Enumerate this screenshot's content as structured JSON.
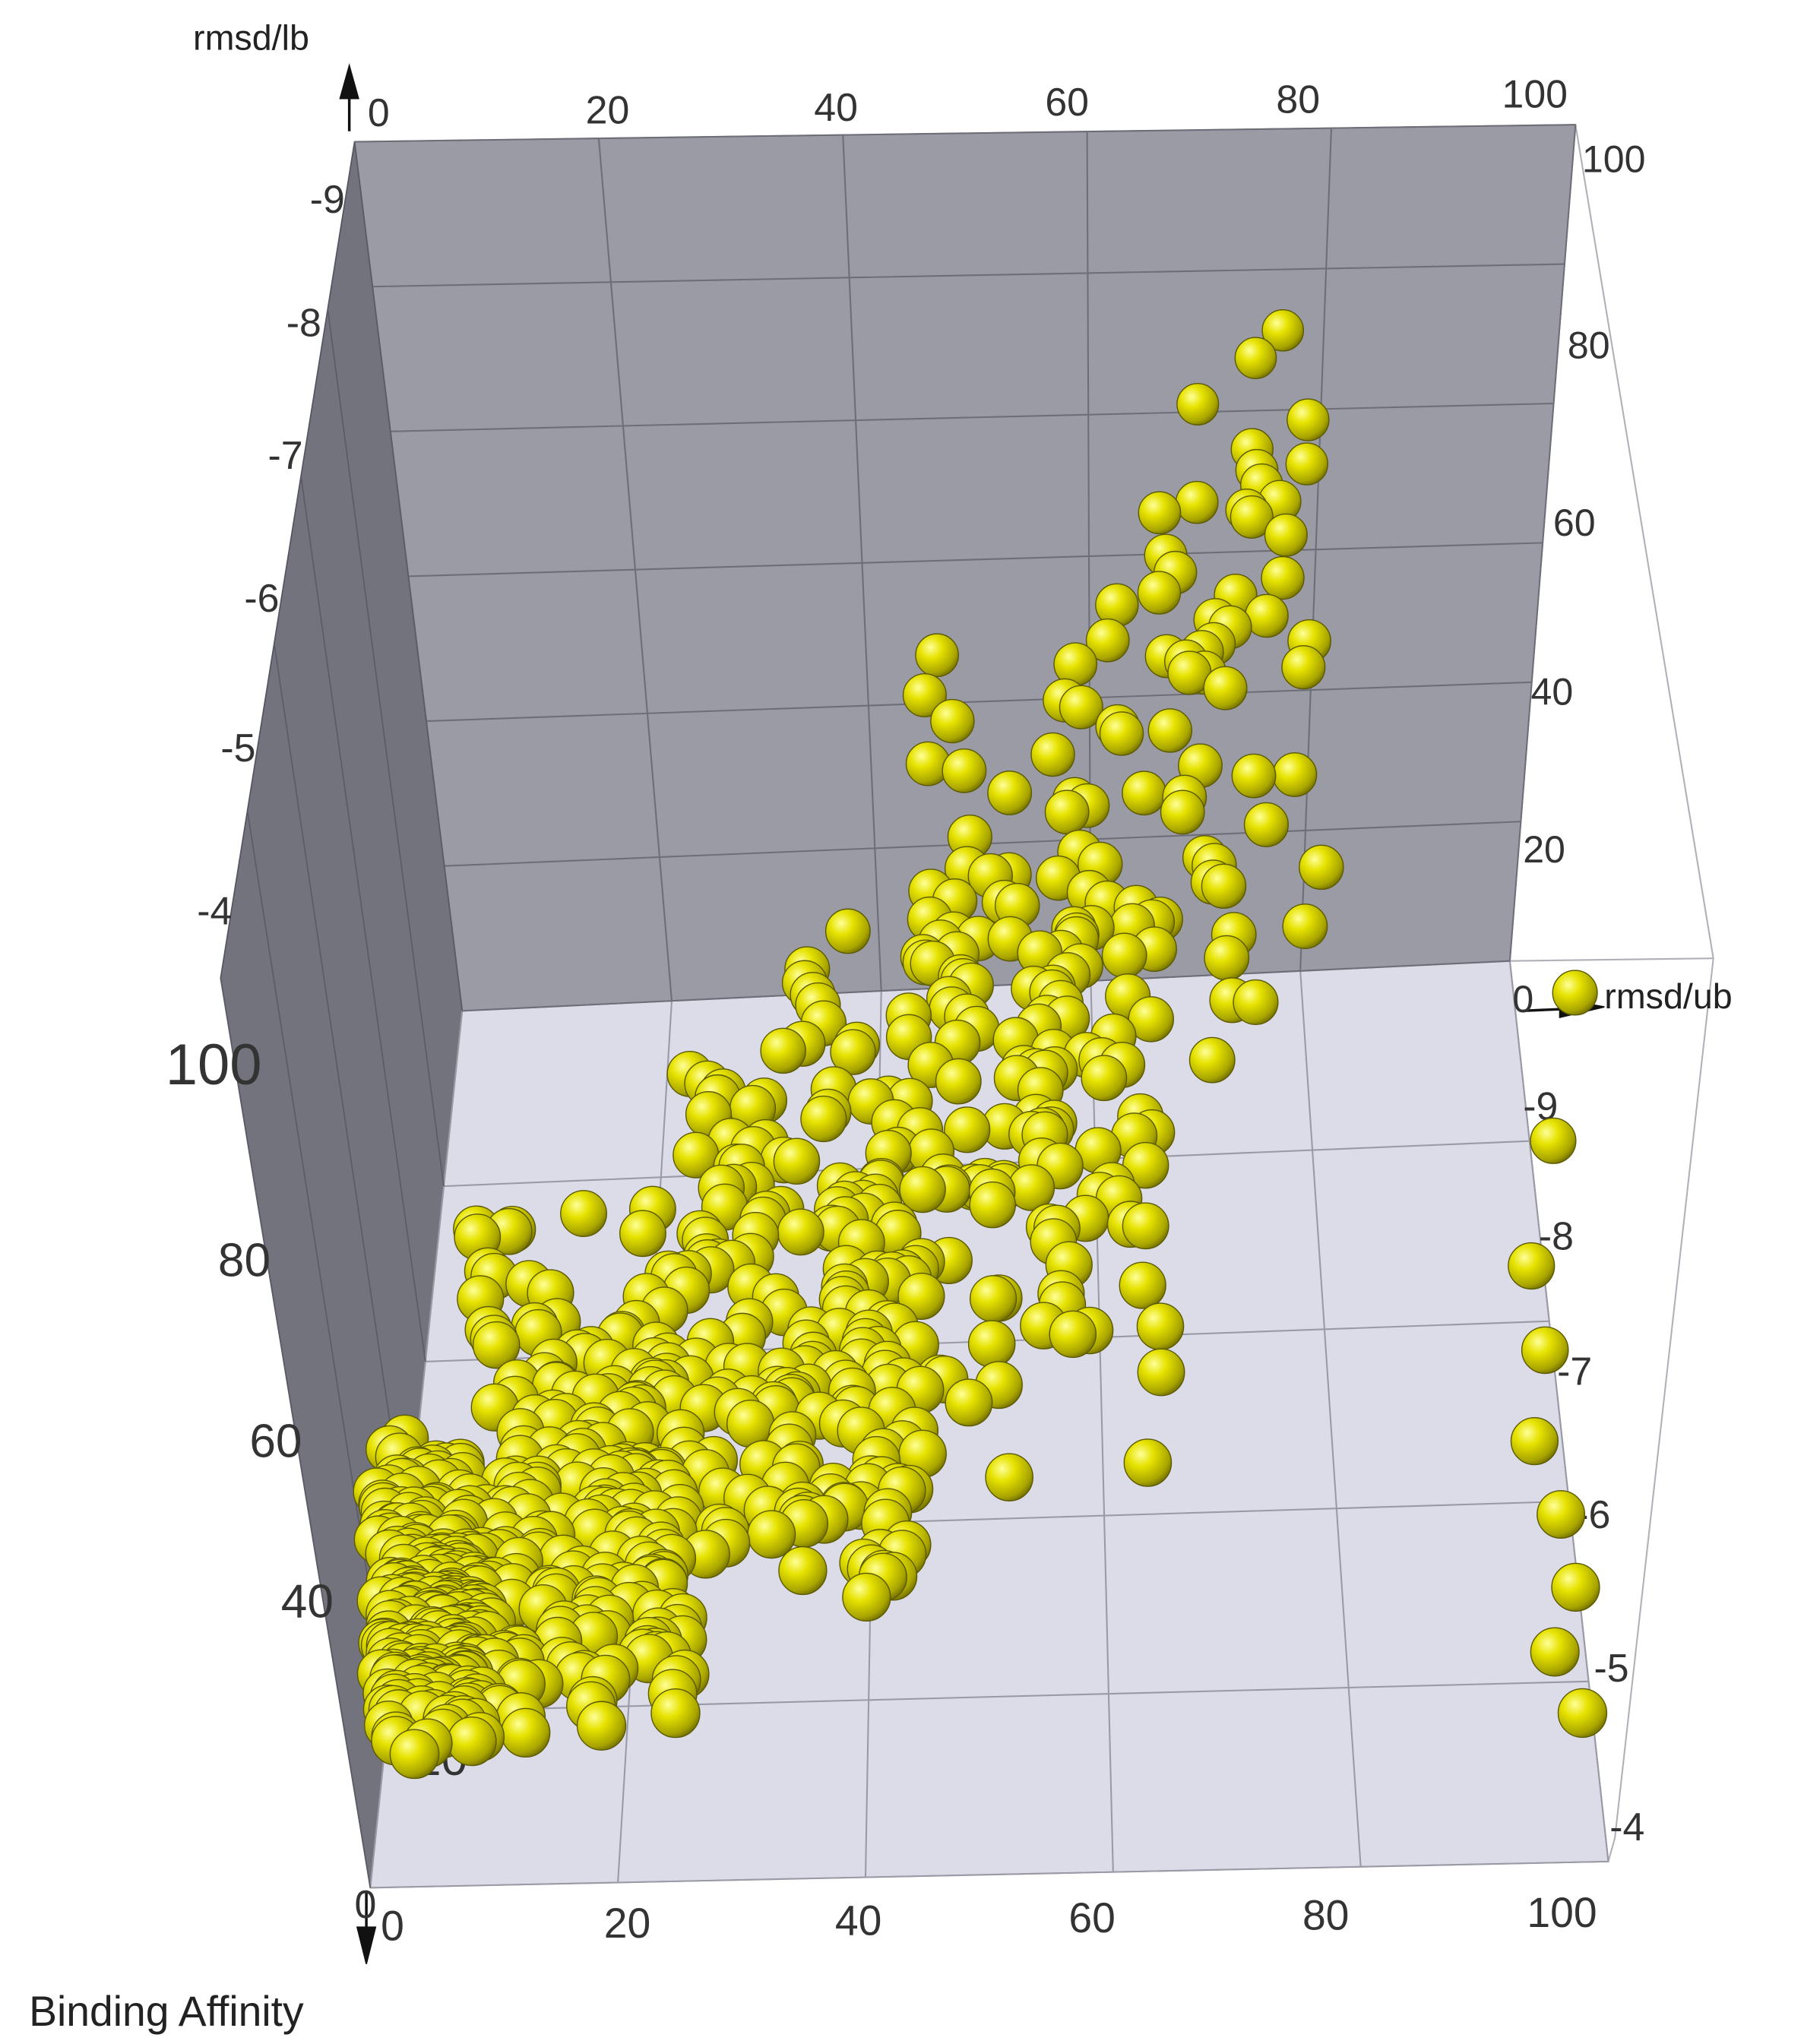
{
  "chart_data": {
    "type": "scatter",
    "projection": "3d",
    "axes": {
      "rmsd_lb": {
        "label": "rmsd/lb",
        "range": [
          0,
          100
        ],
        "ticks": [
          "0",
          "20",
          "40",
          "60",
          "80",
          "100"
        ]
      },
      "rmsd_ub": {
        "label": "rmsd/ub",
        "range": [
          0,
          100
        ],
        "ticks": [
          "0",
          "20",
          "40",
          "60",
          "80",
          "100"
        ]
      },
      "binding_affinity": {
        "label": "Binding Affinity",
        "range": [
          -4,
          -9.5
        ],
        "ticks": [
          "-4",
          "-5",
          "-6",
          "-7",
          "-8",
          "-9"
        ]
      }
    },
    "back_wall_ticks": {
      "top_x": [
        "0",
        "20",
        "40",
        "60",
        "80",
        "100"
      ],
      "left_affinity": [
        "-4",
        "-5",
        "-6",
        "-7",
        "-8",
        "-9"
      ],
      "right_ub": [
        "0",
        "20",
        "40",
        "60",
        "80",
        "100"
      ],
      "left_lb": [
        "0",
        "20",
        "40",
        "60",
        "80",
        "100"
      ]
    },
    "marker": {
      "shape": "sphere",
      "color": "#d8d400"
    },
    "grid": true,
    "seed": 7,
    "clusters": [
      {
        "lb": [
          0,
          8
        ],
        "ub": [
          15,
          30
        ],
        "aff": [
          -4.0,
          -8.0
        ],
        "n": 260
      },
      {
        "lb": [
          8,
          25
        ],
        "ub": [
          15,
          45
        ],
        "aff": [
          -4.3,
          -8.3
        ],
        "n": 240
      },
      {
        "lb": [
          25,
          45
        ],
        "ub": [
          25,
          60
        ],
        "aff": [
          -4.8,
          -8.6
        ],
        "n": 190
      },
      {
        "lb": [
          45,
          65
        ],
        "ub": [
          35,
          80
        ],
        "aff": [
          -5.6,
          -8.9
        ],
        "n": 140
      },
      {
        "lb": [
          65,
          80
        ],
        "ub": [
          60,
          100
        ],
        "aff": [
          -6.5,
          -9.0
        ],
        "n": 50
      }
    ],
    "outliers": [
      {
        "lb": 98,
        "ub": 52,
        "aff": -7.2
      },
      {
        "lb": 97,
        "ub": 40,
        "aff": -6.5
      },
      {
        "lb": 96,
        "ub": 35,
        "aff": -6.0
      },
      {
        "lb": 98,
        "ub": 30,
        "aff": -5.7
      },
      {
        "lb": 99,
        "ub": 25,
        "aff": -5.3
      },
      {
        "lb": 97,
        "ub": 20,
        "aff": -5.0
      },
      {
        "lb": 99,
        "ub": 15,
        "aff": -4.6
      },
      {
        "lb": 96,
        "ub": 45,
        "aff": -6.8
      },
      {
        "lb": 100,
        "ub": 60,
        "aff": -7.6
      },
      {
        "lb": 22,
        "ub": 20,
        "aff": -5.5
      },
      {
        "lb": 52,
        "ub": 30,
        "aff": -6.8
      }
    ]
  }
}
